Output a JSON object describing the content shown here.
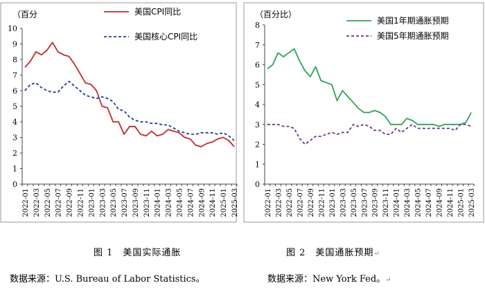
{
  "charts": [
    {
      "type": "line",
      "title": "",
      "unit_label": "（百分",
      "ylim": [
        0,
        10
      ],
      "yticks": [
        0,
        1,
        2,
        3,
        4,
        5,
        6,
        7,
        8,
        9,
        10
      ],
      "x_tick_labels": [
        "2022-01",
        "2022-03",
        "2022-05",
        "2022-07",
        "2022-09",
        "2022-11",
        "2023-01",
        "2023-03",
        "2023-05",
        "2023-07",
        "2023-09",
        "2023-11",
        "2024-01",
        "2024-03",
        "2024-05",
        "2024-07",
        "2024-09",
        "2024-11",
        "2025-01",
        "2025-03"
      ],
      "series": [
        {
          "name": "美国CPI同比",
          "color": "#c0282c",
          "dash": "solid",
          "values": [
            7.5,
            7.9,
            8.5,
            8.3,
            8.6,
            9.1,
            8.5,
            8.3,
            8.2,
            7.7,
            7.1,
            6.5,
            6.4,
            6.0,
            5.0,
            4.9,
            4.0,
            4.0,
            3.2,
            3.7,
            3.7,
            3.2,
            3.1,
            3.4,
            3.1,
            3.2,
            3.5,
            3.4,
            3.3,
            3.0,
            2.9,
            2.5,
            2.4,
            2.6,
            2.7,
            2.9,
            3.0,
            2.8,
            2.4
          ]
        },
        {
          "name": "美国核心CPI同比",
          "color": "#1f3c8c",
          "dash": "dashed",
          "values": [
            6.0,
            6.4,
            6.5,
            6.2,
            6.0,
            5.9,
            5.9,
            6.3,
            6.6,
            6.3,
            6.0,
            5.7,
            5.6,
            5.5,
            5.6,
            5.5,
            5.3,
            4.8,
            4.7,
            4.3,
            4.1,
            4.0,
            4.0,
            3.9,
            3.9,
            3.8,
            3.8,
            3.6,
            3.4,
            3.3,
            3.2,
            3.2,
            3.3,
            3.3,
            3.3,
            3.2,
            3.3,
            3.1,
            2.8
          ]
        }
      ]
    },
    {
      "type": "line",
      "title": "",
      "unit_label": "（百分比）",
      "ylim": [
        0,
        8
      ],
      "yticks": [
        0,
        1,
        2,
        3,
        4,
        5,
        6,
        7,
        8
      ],
      "x_tick_labels": [
        "2022-01",
        "2022-03",
        "2022-05",
        "2022-07",
        "2022-09",
        "2022-11",
        "2023-01",
        "2023-03",
        "2023-05",
        "2023-07",
        "2023-09",
        "2023-11",
        "2024-01",
        "2024-03",
        "2024-05",
        "2024-07",
        "2024-09",
        "2024-11",
        "2025-01",
        "2025-03"
      ],
      "series": [
        {
          "name": "美国1年期通胀预期",
          "color": "#2ca453",
          "dash": "solid",
          "values": [
            5.8,
            6.0,
            6.6,
            6.4,
            6.6,
            6.8,
            6.2,
            5.7,
            5.4,
            5.9,
            5.2,
            5.1,
            5.0,
            4.2,
            4.7,
            4.4,
            4.1,
            3.8,
            3.6,
            3.6,
            3.7,
            3.6,
            3.4,
            3.0,
            3.0,
            3.0,
            3.3,
            3.2,
            3.0,
            3.0,
            3.0,
            3.0,
            2.9,
            3.0,
            3.0,
            3.0,
            3.0,
            3.1,
            3.6
          ]
        },
        {
          "name": "美国5年期通胀预期",
          "color": "#6a3589",
          "dash": "dashed",
          "values": [
            3.0,
            3.0,
            3.0,
            2.9,
            2.9,
            2.8,
            2.3,
            2.0,
            2.2,
            2.4,
            2.4,
            2.5,
            2.6,
            2.5,
            2.6,
            2.6,
            3.0,
            2.9,
            3.0,
            2.9,
            2.7,
            2.7,
            2.5,
            2.5,
            2.8,
            2.6,
            2.8,
            3.0,
            2.8,
            2.8,
            2.8,
            2.8,
            2.8,
            2.8,
            2.8,
            2.7,
            3.0,
            3.0,
            2.9
          ]
        }
      ]
    }
  ],
  "captions": {
    "fig1": "图 1　美国实际通胀",
    "fig2": "图 2　美国通胀预期",
    "src1": "数据来源：U.S. Bureau of Labor Statistics。",
    "src2": "数据来源：New York Fed。"
  },
  "return_mark": "↵"
}
